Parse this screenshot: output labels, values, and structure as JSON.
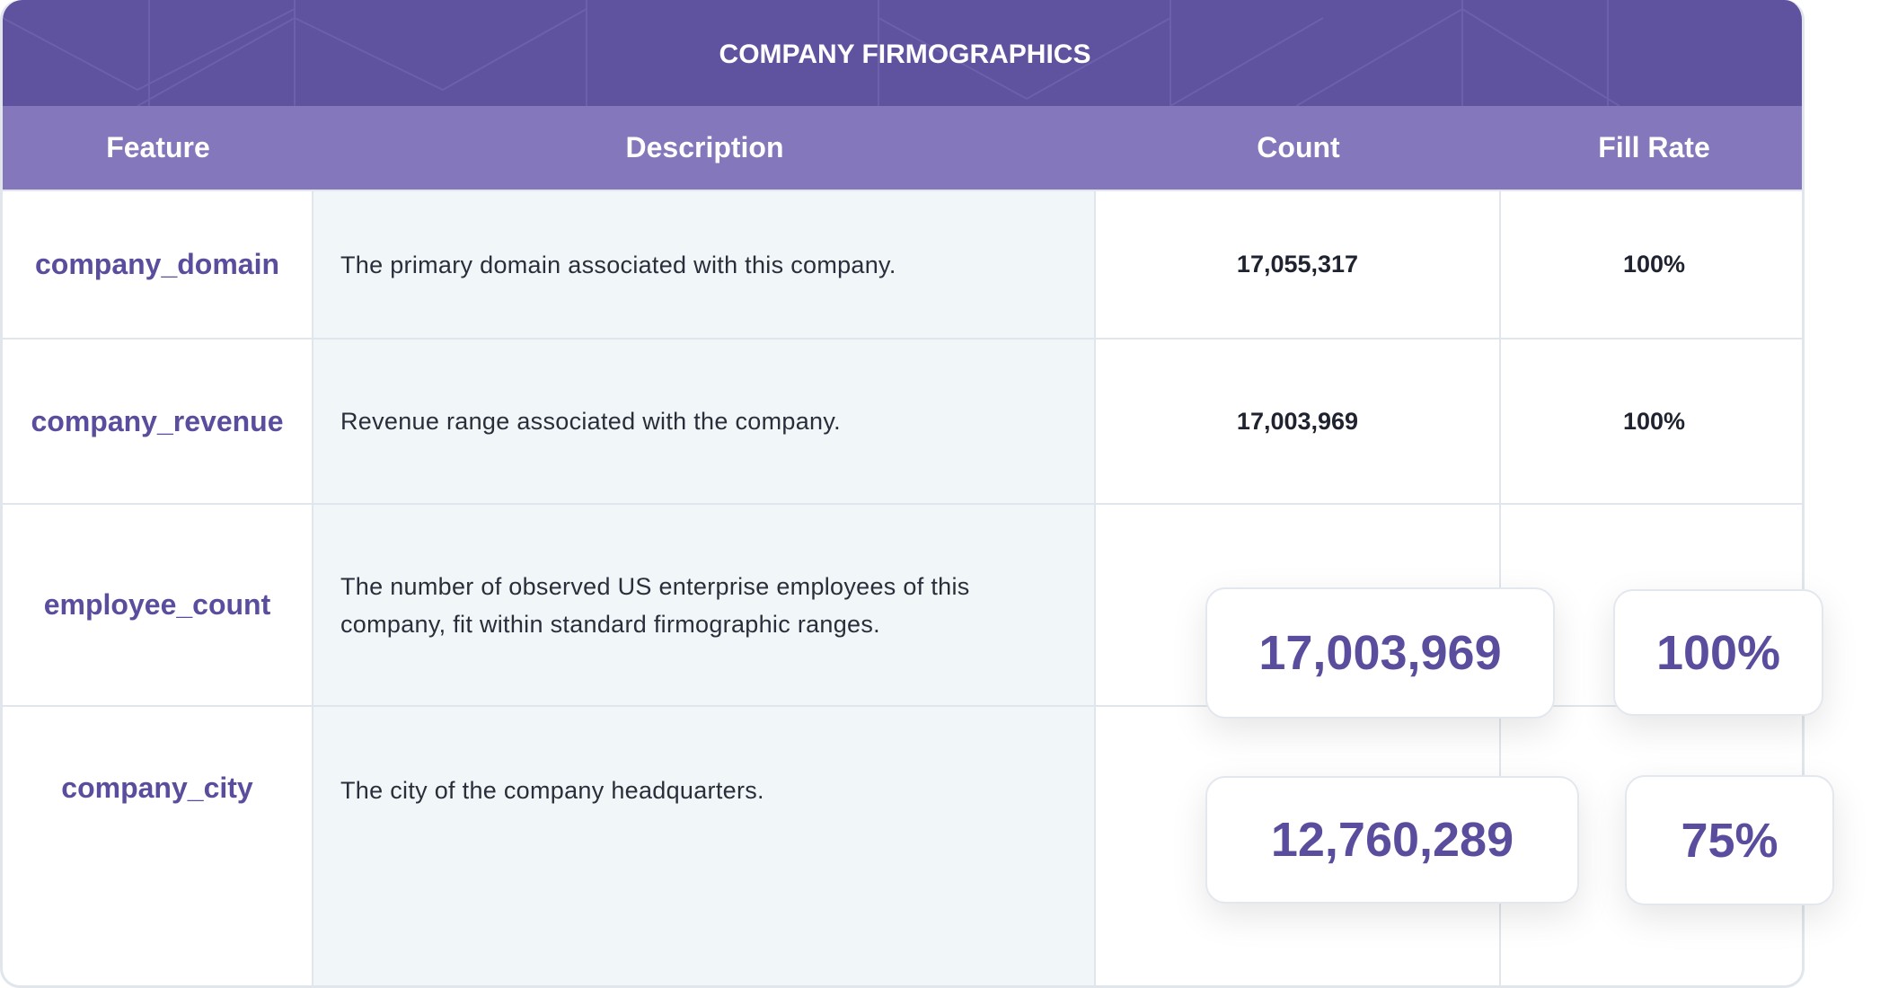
{
  "title": "COMPANY FIRMOGRAPHICS",
  "columns": [
    "Feature",
    "Description",
    "Count",
    "Fill Rate"
  ],
  "rows": [
    {
      "feature": "company_domain",
      "description": "The primary domain associated with this company.",
      "count": "17,055,317",
      "fill_rate": "100%"
    },
    {
      "feature": "company_revenue",
      "description": "Revenue range associated with the company.",
      "count": "17,003,969",
      "fill_rate": "100%"
    },
    {
      "feature": "employee_count",
      "description": "The number of observed US enterprise employees of this company, fit within standard firmographic ranges.",
      "count": "",
      "fill_rate": ""
    },
    {
      "feature": "company_city",
      "description": "The city of the company headquarters.",
      "count": "",
      "fill_rate": ""
    }
  ],
  "callouts": {
    "employee_count_count": "17,003,969",
    "employee_count_fill": "100%",
    "company_city_count": "12,760,289",
    "company_city_fill": "75%"
  },
  "colors": {
    "header": "#5f529f",
    "column_header": "#8477bb",
    "feature_text": "#5b4d9d",
    "description_bg": "#f1f6f9"
  }
}
